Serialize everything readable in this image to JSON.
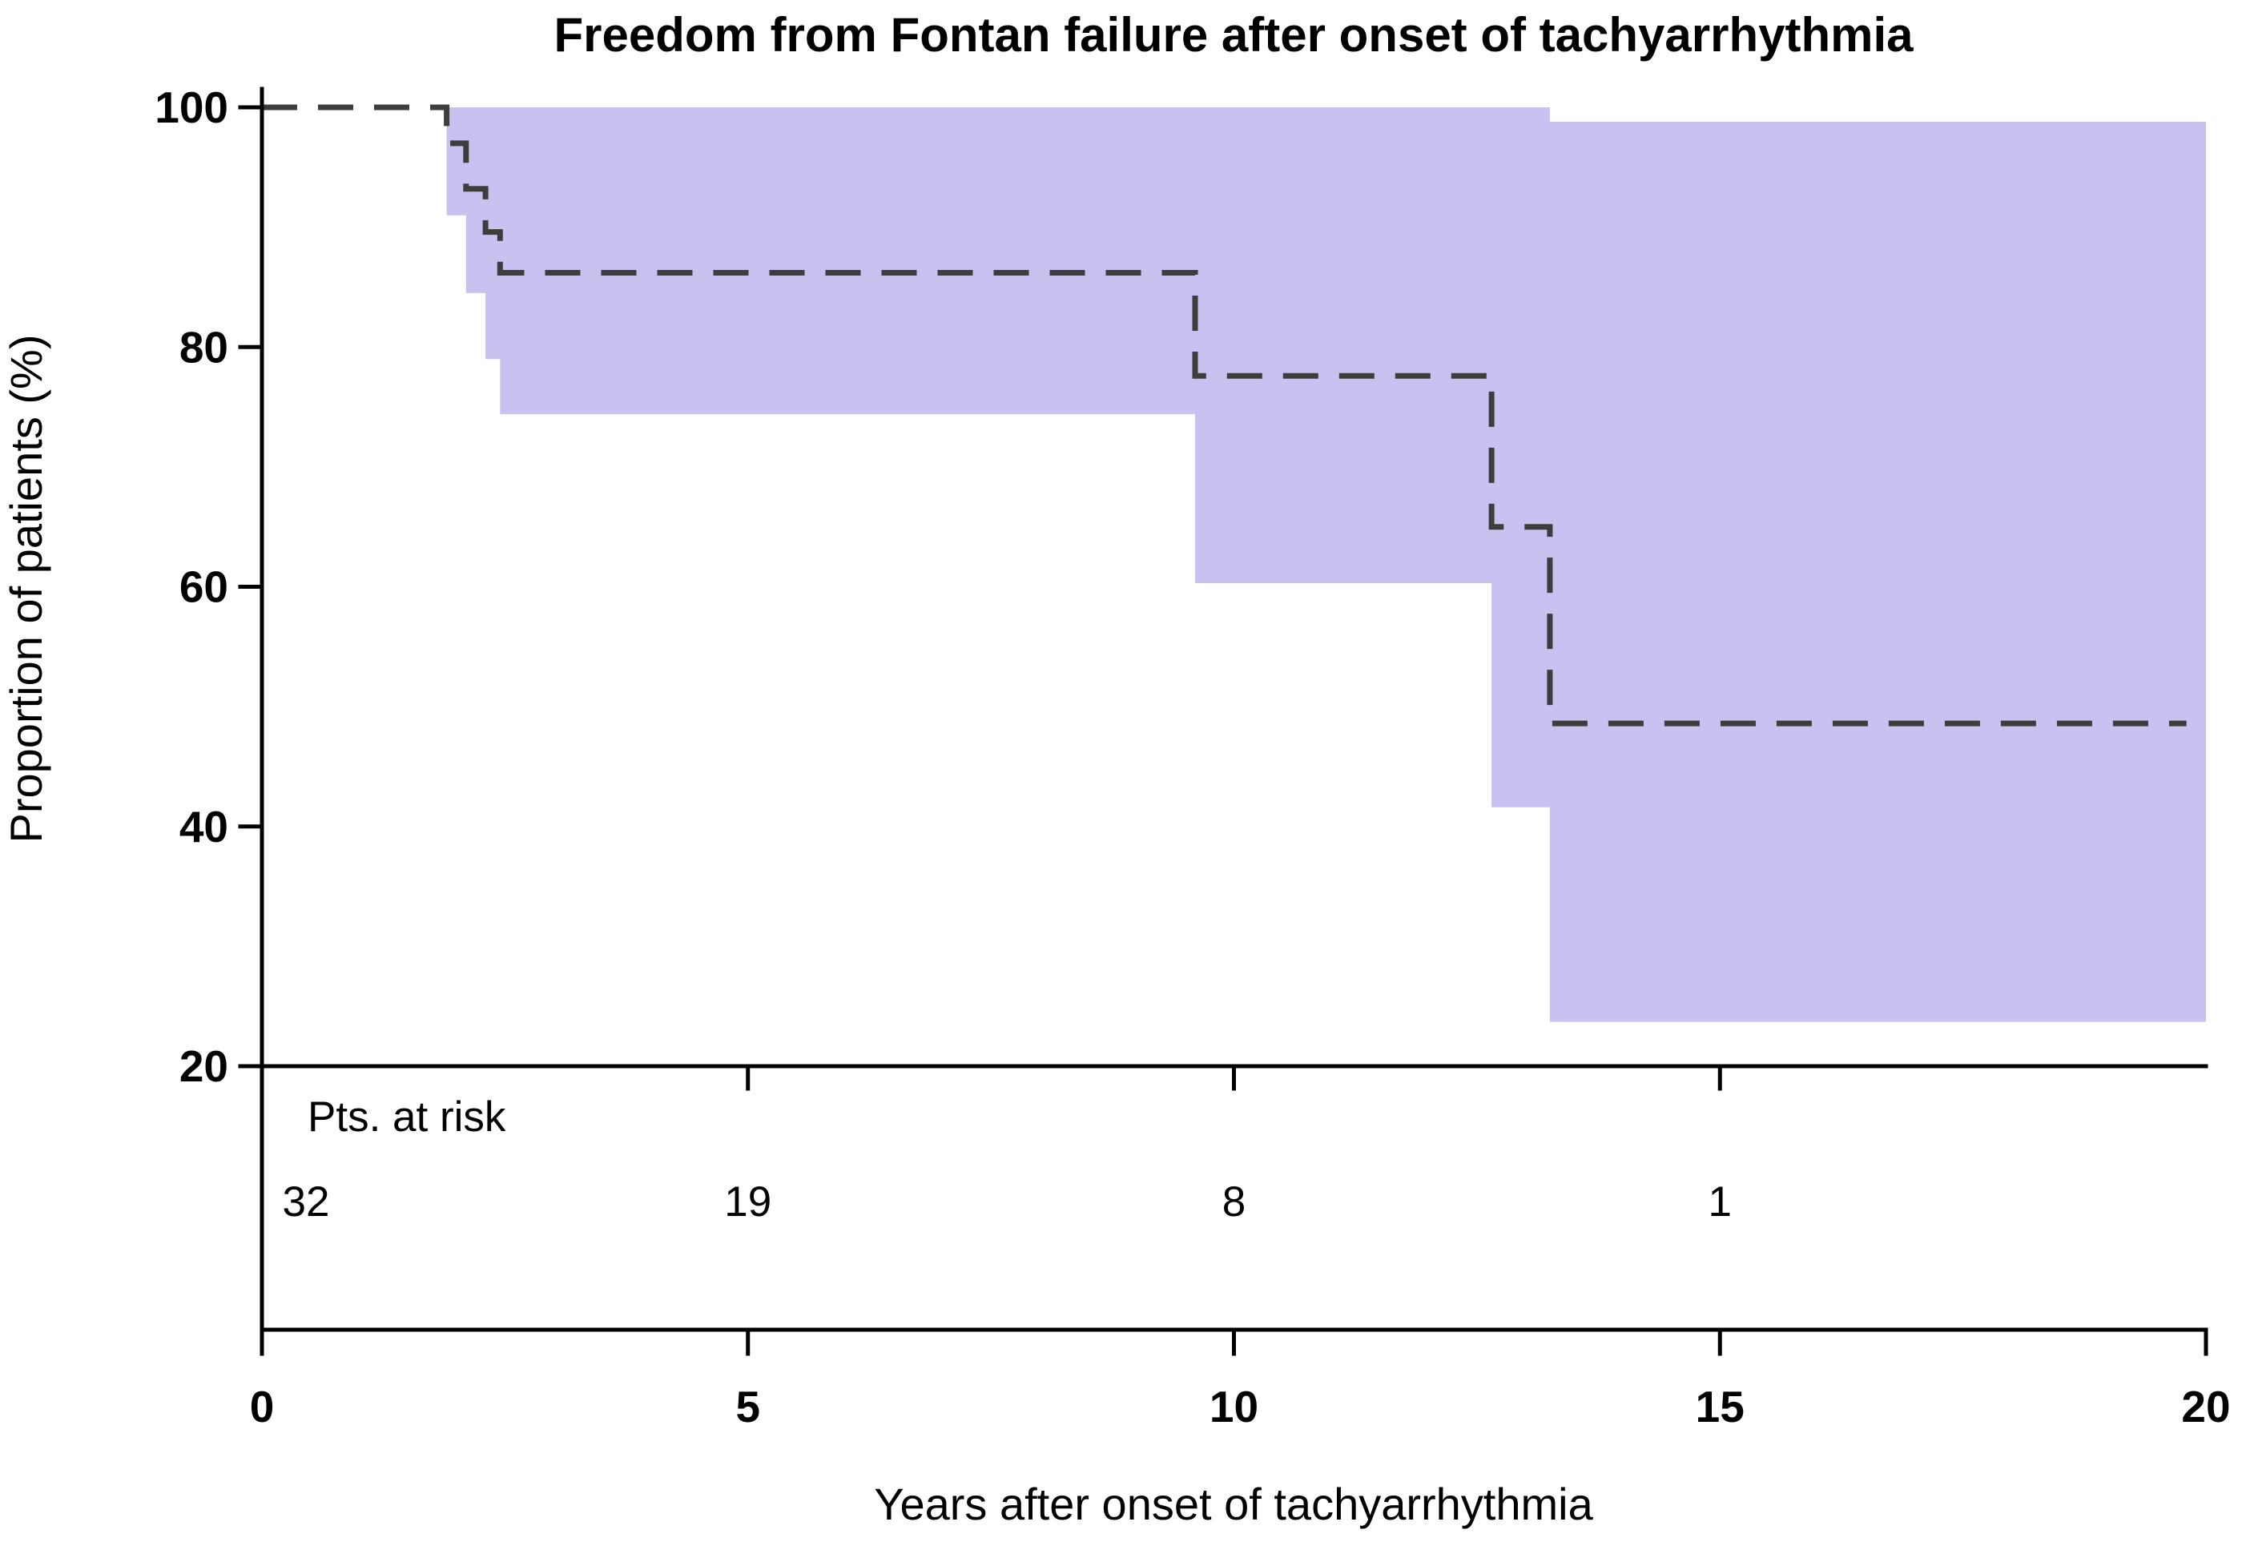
{
  "figure": {
    "title": "Freedom from Fontan failure after onset of tachyarrhythmia"
  },
  "chart_data": {
    "type": "line",
    "variant": "kaplan_meier_step",
    "title": "Freedom from Fontan failure after onset of tachyarrhythmia",
    "xlabel": "Years after onset of tachyarrhythmia",
    "ylabel": "Proportion of patients (%)",
    "xlim": [
      0,
      20
    ],
    "ylim": [
      20,
      100
    ],
    "xticks": [
      0,
      5,
      10,
      15,
      20
    ],
    "yticks": [
      20,
      40,
      60,
      80,
      100
    ],
    "grid": false,
    "legend": "none",
    "series": [
      {
        "name": "freedom_from_fontan_failure_percent",
        "line_style": "dashed",
        "color": "#3d3d3d",
        "step_points": [
          [
            0,
            100
          ],
          [
            1.9,
            97
          ],
          [
            2.1,
            93.2
          ],
          [
            2.3,
            89.6
          ],
          [
            2.45,
            86.2
          ],
          [
            9.6,
            77.6
          ],
          [
            12.65,
            65
          ],
          [
            13.25,
            48.6
          ],
          [
            19.8,
            48.6
          ]
        ]
      }
    ],
    "confidence_band": {
      "color": "#c8c2f1",
      "upper_step_points": [
        [
          1.9,
          100
        ],
        [
          13.25,
          98.8
        ],
        [
          20,
          98.8
        ]
      ],
      "lower_step_points": [
        [
          1.9,
          91
        ],
        [
          2.1,
          84.5
        ],
        [
          2.3,
          79
        ],
        [
          2.45,
          74.4
        ],
        [
          9.6,
          60.3
        ],
        [
          12.65,
          41.6
        ],
        [
          13.25,
          23.7
        ],
        [
          20,
          23.7
        ]
      ]
    },
    "risk_table": {
      "label": "Pts. at risk",
      "times": [
        0,
        5,
        10,
        15
      ],
      "counts": [
        "32",
        "19",
        "8",
        "1"
      ]
    }
  },
  "colors": {
    "background": "#ffffff",
    "band": "#c8c2f1",
    "curve": "#3d3d3d",
    "axis": "#000000",
    "text": "#000000"
  }
}
